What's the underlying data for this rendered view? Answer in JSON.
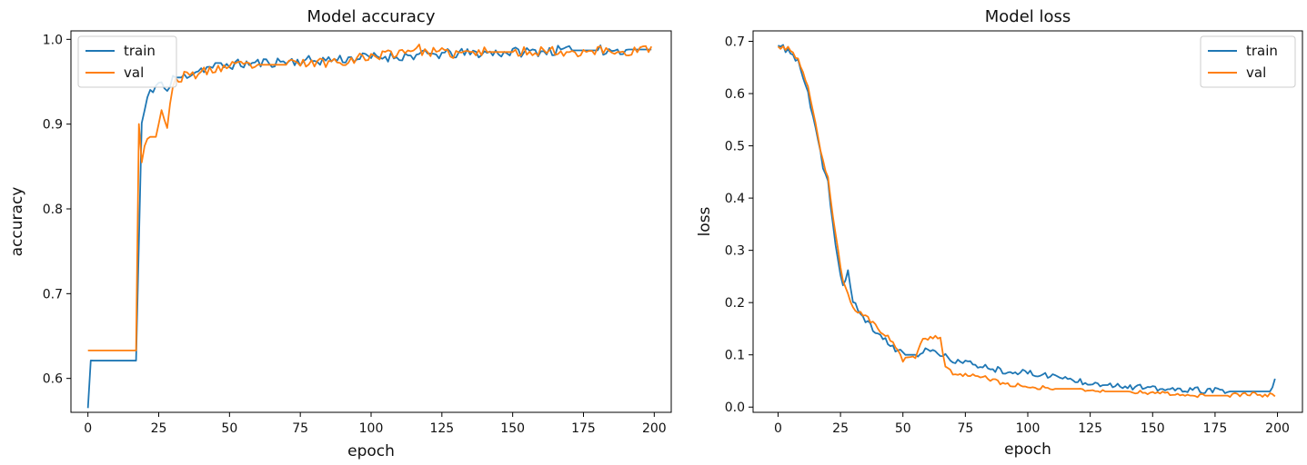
{
  "chart_data": [
    {
      "type": "line",
      "title": "Model accuracy",
      "xlabel": "epoch",
      "ylabel": "accuracy",
      "xlim": [
        -6,
        206
      ],
      "ylim": [
        0.56,
        1.01
      ],
      "xticks": [
        0,
        25,
        50,
        75,
        100,
        125,
        150,
        175,
        200
      ],
      "yticks": [
        0.6,
        0.7,
        0.8,
        0.9,
        1.0
      ],
      "ytick_decimals": 1,
      "legend_position": "upper-left",
      "grid": false,
      "series": [
        {
          "name": "train",
          "color": "#1f77b4",
          "anchors": [
            [
              0,
              0.565
            ],
            [
              1,
              0.621
            ],
            [
              17,
              0.621
            ],
            [
              19,
              0.9
            ],
            [
              20,
              0.915
            ],
            [
              22,
              0.94
            ],
            [
              24,
              0.945
            ],
            [
              26,
              0.95
            ],
            [
              28,
              0.935
            ],
            [
              30,
              0.955
            ],
            [
              33,
              0.955
            ],
            [
              36,
              0.96
            ],
            [
              40,
              0.965
            ],
            [
              45,
              0.968
            ],
            [
              50,
              0.97
            ],
            [
              60,
              0.972
            ],
            [
              70,
              0.974
            ],
            [
              80,
              0.975
            ],
            [
              90,
              0.977
            ],
            [
              100,
              0.979
            ],
            [
              110,
              0.98
            ],
            [
              120,
              0.982
            ],
            [
              130,
              0.983
            ],
            [
              140,
              0.984
            ],
            [
              150,
              0.985
            ],
            [
              160,
              0.986
            ],
            [
              170,
              0.987
            ],
            [
              180,
              0.987
            ],
            [
              190,
              0.988
            ],
            [
              199,
              0.988
            ]
          ],
          "noise": 0.006,
          "seed": 11
        },
        {
          "name": "val",
          "color": "#ff7f0e",
          "anchors": [
            [
              0,
              0.633
            ],
            [
              17,
              0.633
            ],
            [
              18,
              0.905
            ],
            [
              19,
              0.86
            ],
            [
              21,
              0.885
            ],
            [
              24,
              0.885
            ],
            [
              26,
              0.92
            ],
            [
              28,
              0.89
            ],
            [
              30,
              0.95
            ],
            [
              33,
              0.955
            ],
            [
              36,
              0.958
            ],
            [
              40,
              0.96
            ],
            [
              45,
              0.965
            ],
            [
              50,
              0.968
            ],
            [
              60,
              0.97
            ],
            [
              70,
              0.97
            ],
            [
              80,
              0.972
            ],
            [
              90,
              0.975
            ],
            [
              100,
              0.98
            ],
            [
              110,
              0.985
            ],
            [
              115,
              0.99
            ],
            [
              120,
              0.985
            ],
            [
              130,
              0.983
            ],
            [
              140,
              0.985
            ],
            [
              150,
              0.985
            ],
            [
              160,
              0.987
            ],
            [
              170,
              0.985
            ],
            [
              180,
              0.987
            ],
            [
              190,
              0.985
            ],
            [
              199,
              0.99
            ]
          ],
          "noise": 0.006,
          "seed": 23
        }
      ]
    },
    {
      "type": "line",
      "title": "Model loss",
      "xlabel": "epoch",
      "ylabel": "loss",
      "xlim": [
        -10,
        210
      ],
      "ylim": [
        -0.01,
        0.72
      ],
      "xticks": [
        0,
        25,
        50,
        75,
        100,
        125,
        150,
        175,
        200
      ],
      "yticks": [
        0.0,
        0.1,
        0.2,
        0.3,
        0.4,
        0.5,
        0.6,
        0.7
      ],
      "ytick_decimals": 1,
      "legend_position": "upper-right",
      "grid": false,
      "series": [
        {
          "name": "train",
          "color": "#1f77b4",
          "anchors": [
            [
              0,
              0.692
            ],
            [
              5,
              0.68
            ],
            [
              8,
              0.66
            ],
            [
              12,
              0.6
            ],
            [
              15,
              0.53
            ],
            [
              18,
              0.46
            ],
            [
              20,
              0.43
            ],
            [
              22,
              0.35
            ],
            [
              24,
              0.28
            ],
            [
              26,
              0.23
            ],
            [
              28,
              0.26
            ],
            [
              30,
              0.2
            ],
            [
              33,
              0.18
            ],
            [
              36,
              0.16
            ],
            [
              40,
              0.14
            ],
            [
              45,
              0.12
            ],
            [
              50,
              0.1
            ],
            [
              55,
              0.1
            ],
            [
              60,
              0.11
            ],
            [
              65,
              0.1
            ],
            [
              70,
              0.09
            ],
            [
              80,
              0.08
            ],
            [
              90,
              0.07
            ],
            [
              100,
              0.065
            ],
            [
              110,
              0.06
            ],
            [
              120,
              0.05
            ],
            [
              130,
              0.045
            ],
            [
              140,
              0.04
            ],
            [
              150,
              0.035
            ],
            [
              160,
              0.033
            ],
            [
              170,
              0.032
            ],
            [
              180,
              0.03
            ],
            [
              190,
              0.03
            ],
            [
              197,
              0.03
            ],
            [
              199,
              0.05
            ]
          ],
          "noise": 0.006,
          "seed": 37
        },
        {
          "name": "val",
          "color": "#ff7f0e",
          "anchors": [
            [
              0,
              0.69
            ],
            [
              5,
              0.685
            ],
            [
              8,
              0.665
            ],
            [
              12,
              0.61
            ],
            [
              15,
              0.54
            ],
            [
              18,
              0.47
            ],
            [
              20,
              0.44
            ],
            [
              22,
              0.36
            ],
            [
              24,
              0.3
            ],
            [
              26,
              0.24
            ],
            [
              28,
              0.22
            ],
            [
              30,
              0.19
            ],
            [
              33,
              0.18
            ],
            [
              36,
              0.17
            ],
            [
              40,
              0.15
            ],
            [
              45,
              0.13
            ],
            [
              50,
              0.09
            ],
            [
              55,
              0.095
            ],
            [
              58,
              0.13
            ],
            [
              62,
              0.135
            ],
            [
              65,
              0.13
            ],
            [
              67,
              0.08
            ],
            [
              70,
              0.065
            ],
            [
              80,
              0.06
            ],
            [
              90,
              0.045
            ],
            [
              100,
              0.04
            ],
            [
              110,
              0.035
            ],
            [
              120,
              0.035
            ],
            [
              130,
              0.03
            ],
            [
              140,
              0.03
            ],
            [
              150,
              0.028
            ],
            [
              160,
              0.025
            ],
            [
              170,
              0.022
            ],
            [
              180,
              0.022
            ],
            [
              190,
              0.025
            ],
            [
              199,
              0.022
            ]
          ],
          "noise": 0.004,
          "seed": 53
        }
      ]
    }
  ]
}
